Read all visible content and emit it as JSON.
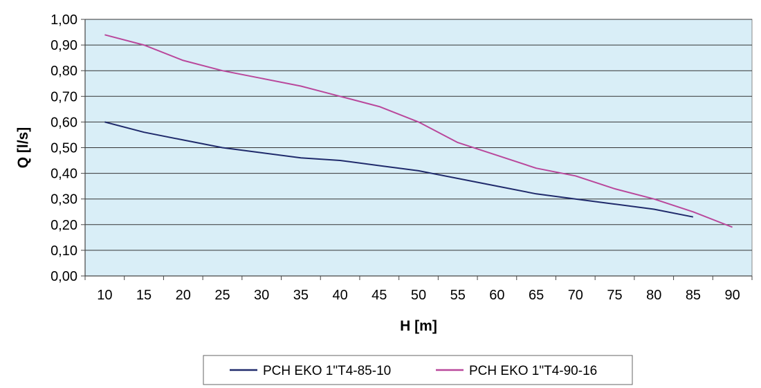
{
  "chart_data": {
    "type": "line",
    "title": "",
    "xlabel": "H [m]",
    "ylabel": "Q [l/s]",
    "x": [
      10,
      15,
      20,
      25,
      30,
      35,
      40,
      45,
      50,
      55,
      60,
      65,
      70,
      75,
      80,
      85,
      90
    ],
    "x_tick_labels": [
      "10",
      "15",
      "20",
      "25",
      "30",
      "35",
      "40",
      "45",
      "50",
      "55",
      "60",
      "65",
      "70",
      "75",
      "80",
      "85",
      "90"
    ],
    "ylim": [
      0,
      1
    ],
    "y_ticks": [
      0,
      0.1,
      0.2,
      0.3,
      0.4,
      0.5,
      0.6,
      0.7,
      0.8,
      0.9,
      1.0
    ],
    "y_tick_labels": [
      "0,00",
      "0,10",
      "0,20",
      "0,30",
      "0,40",
      "0,50",
      "0,60",
      "0,70",
      "0,80",
      "0,90",
      "1,00"
    ],
    "grid": "horizontal",
    "legend_position": "bottom",
    "plot_background": "#d9eef7",
    "series": [
      {
        "name": "PCH EKO 1\"T4-85-10",
        "color": "#1f2a6b",
        "x": [
          10,
          15,
          20,
          25,
          30,
          35,
          40,
          45,
          50,
          55,
          60,
          65,
          70,
          75,
          80,
          85
        ],
        "values": [
          0.6,
          0.56,
          0.53,
          0.5,
          0.48,
          0.46,
          0.45,
          0.43,
          0.41,
          0.38,
          0.35,
          0.32,
          0.3,
          0.28,
          0.26,
          0.23
        ]
      },
      {
        "name": "PCH EKO 1\"T4-90-16",
        "color": "#b9479b",
        "x": [
          10,
          15,
          20,
          25,
          30,
          35,
          40,
          45,
          50,
          55,
          60,
          65,
          70,
          75,
          80,
          85,
          90
        ],
        "values": [
          0.94,
          0.9,
          0.84,
          0.8,
          0.77,
          0.74,
          0.7,
          0.66,
          0.6,
          0.52,
          0.47,
          0.42,
          0.39,
          0.34,
          0.3,
          0.25,
          0.19
        ]
      }
    ]
  }
}
